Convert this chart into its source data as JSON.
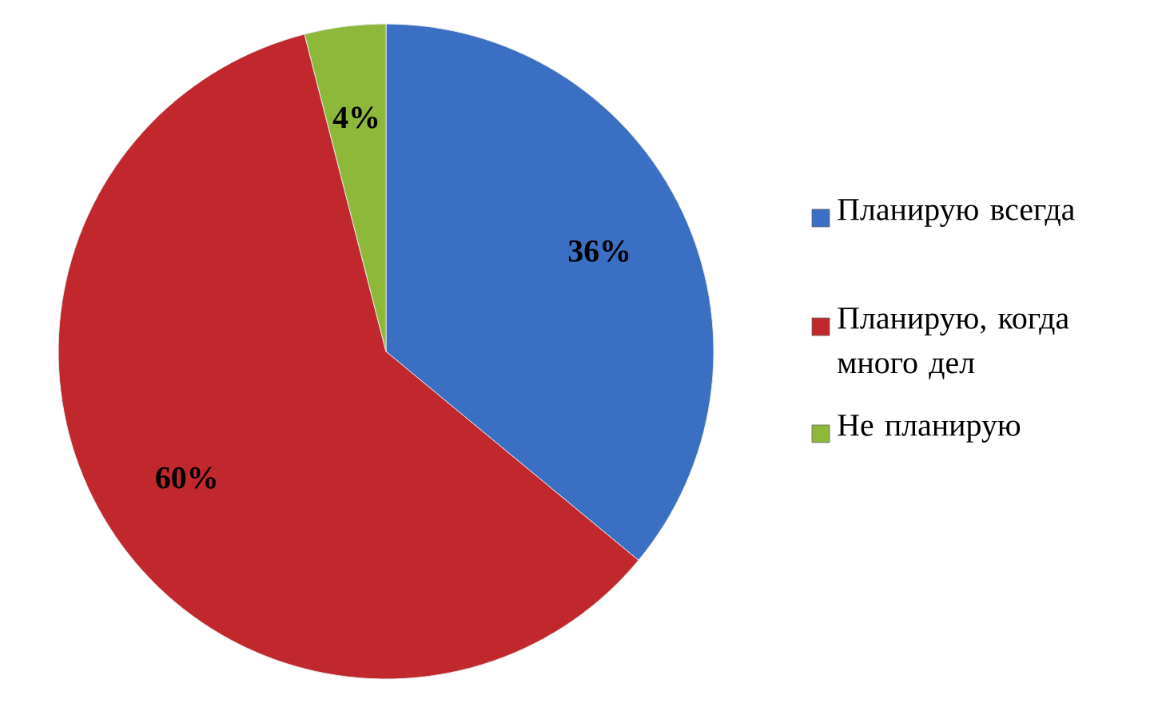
{
  "chart_data": {
    "type": "pie",
    "categories": [
      "Планирую всегда",
      "Планирую, когда много дел",
      "Не планирую"
    ],
    "values": [
      36,
      60,
      4
    ],
    "value_labels": [
      "36%",
      "60%",
      "4%"
    ],
    "colors": [
      "#3a6fc4",
      "#c0282d",
      "#8db83a"
    ],
    "legend": "right"
  }
}
